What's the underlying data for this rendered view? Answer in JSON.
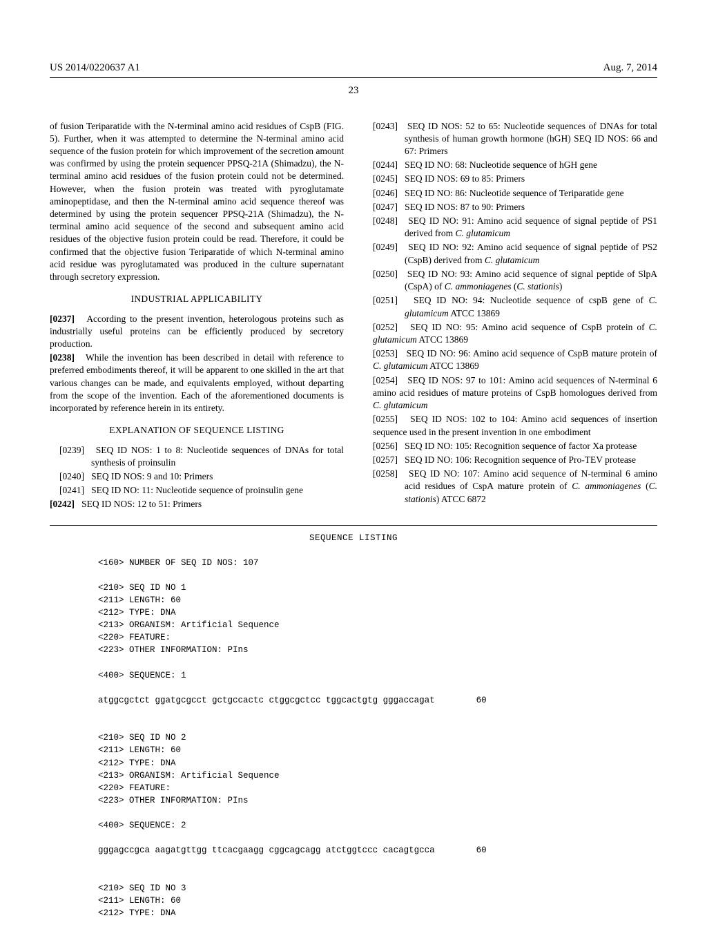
{
  "meta": {
    "pub_no": "US 2014/0220637 A1",
    "pub_date": "Aug. 7, 2014",
    "page_num": "23"
  },
  "col_left": {
    "intro": "of fusion Teriparatide with the N-terminal amino acid residues of CspB (FIG. 5). Further, when it was attempted to determine the N-terminal amino acid sequence of the fusion protein for which improvement of the secretion amount was confirmed by using the protein sequencer PPSQ-21A (Shimadzu), the N-terminal amino acid residues of the fusion protein could not be determined. However, when the fusion protein was treated with pyroglutamate aminopeptidase, and then the N-terminal amino acid sequence thereof was determined by using the protein sequencer PPSQ-21A (Shimadzu), the N-terminal amino acid sequence of the second and subsequent amino acid residues of the objective fusion protein could be read. Therefore, it could be confirmed that the objective fusion Teriparatide of which N-terminal amino acid residue was pyroglutamated was produced in the culture supernatant through secretory expression.",
    "heading_ind": "INDUSTRIAL APPLICABILITY",
    "p0237_num": "[0237]",
    "p0237": "According to the present invention, heterologous proteins such as industrially useful proteins can be efficiently produced by secretory production.",
    "p0238_num": "[0238]",
    "p0238": "While the invention has been described in detail with reference to preferred embodiments thereof, it will be apparent to one skilled in the art that various changes can be made, and equivalents employed, without departing from the scope of the invention. Each of the aforementioned documents is incorporated by reference herein in its entirety.",
    "heading_expl": "EXPLANATION OF SEQUENCE LISTING",
    "p0239_num": "[0239]",
    "p0239": "SEQ ID NOS: 1 to 8: Nucleotide sequences of DNAs for total synthesis of proinsulin",
    "p0240_num": "[0240]",
    "p0240": "SEQ ID NOS: 9 and 10: Primers",
    "p0241_num": "[0241]",
    "p0241": "SEQ ID NO: 11: Nucleotide sequence of proinsulin gene",
    "p0242_num": "[0242]",
    "p0242": "SEQ ID NOS: 12 to 51: Primers"
  },
  "col_right": {
    "p0243_num": "[0243]",
    "p0243": "SEQ ID NOS: 52 to 65: Nucleotide sequences of DNAs for total synthesis of human growth hormone (hGH) SEQ ID NOS: 66 and 67: Primers",
    "p0244_num": "[0244]",
    "p0244": "SEQ ID NO: 68: Nucleotide sequence of hGH gene",
    "p0245_num": "[0245]",
    "p0245": "SEQ ID NOS: 69 to 85: Primers",
    "p0246_num": "[0246]",
    "p0246": "SEQ ID NO: 86: Nucleotide sequence of Teriparatide gene",
    "p0247_num": "[0247]",
    "p0247": "SEQ ID NOS: 87 to 90: Primers",
    "p0248_num": "[0248]",
    "p0248_a": "SEQ ID NO: 91: Amino acid sequence of signal peptide of PS1 derived from ",
    "p0248_i": "C. glutamicum",
    "p0249_num": "[0249]",
    "p0249_a": "SEQ ID NO: 92: Amino acid sequence of signal peptide of PS2 (CspB) derived from ",
    "p0249_i": "C. glutamicum",
    "p0250_num": "[0250]",
    "p0250_a": "SEQ ID NO: 93: Amino acid sequence of signal peptide of SlpA (CspA) of ",
    "p0250_i1": "C. ammoniagenes",
    "p0250_b": " (",
    "p0250_i2": "C. stationis",
    "p0250_c": ")",
    "p0251_num": "[0251]",
    "p0251_a": "SEQ ID NO: 94: Nucleotide sequence of cspB gene of ",
    "p0251_i": "C. glutamicum",
    "p0251_b": " ATCC 13869",
    "p0252_num": "[0252]",
    "p0252_a": "SEQ ID NO: 95: Amino acid sequence of CspB protein of ",
    "p0252_i": "C. glutamicum",
    "p0252_b": " ATCC 13869",
    "p0253_num": "[0253]",
    "p0253_a": "SEQ ID NO: 96: Amino acid sequence of CspB mature protein of ",
    "p0253_i": "C. glutamicum",
    "p0253_b": " ATCC 13869",
    "p0254_num": "[0254]",
    "p0254_a": "SEQ ID NOS: 97 to 101: Amino acid sequences of N-terminal 6 amino acid residues of mature proteins of CspB homologues derived from ",
    "p0254_i": "C. glutamicum",
    "p0255_num": "[0255]",
    "p0255": "SEQ ID NOS: 102 to 104: Amino acid sequences of insertion sequence used in the present invention in one embodiment",
    "p0256_num": "[0256]",
    "p0256": "SEQ ID NO: 105: Recognition sequence of factor Xa protease",
    "p0257_num": "[0257]",
    "p0257": "SEQ ID NO: 106: Recognition sequence of Pro-TEV protease",
    "p0258_num": "[0258]",
    "p0258_a": "SEQ ID NO: 107: Amino acid sequence of N-terminal 6 amino acid residues of CspA mature protein of ",
    "p0258_i1": "C. ammoniagenes",
    "p0258_b": " (",
    "p0258_i2": "C. stationis",
    "p0258_c": ") ATCC 6872"
  },
  "sequence_listing": {
    "title": "SEQUENCE LISTING",
    "header": "<160> NUMBER OF SEQ ID NOS: 107",
    "seq1_meta": "<210> SEQ ID NO 1\n<211> LENGTH: 60\n<212> TYPE: DNA\n<213> ORGANISM: Artificial Sequence\n<220> FEATURE:\n<223> OTHER INFORMATION: PIns\n\n<400> SEQUENCE: 1",
    "seq1_body": "atggcgctct ggatgcgcct gctgccactc ctggcgctcc tggcactgtg gggaccagat        60",
    "seq2_meta": "<210> SEQ ID NO 2\n<211> LENGTH: 60\n<212> TYPE: DNA\n<213> ORGANISM: Artificial Sequence\n<220> FEATURE:\n<223> OTHER INFORMATION: PIns\n\n<400> SEQUENCE: 2",
    "seq2_body": "gggagccgca aagatgttgg ttcacgaagg cggcagcagg atctggtccc cacagtgcca        60",
    "seq3_meta": "<210> SEQ ID NO 3\n<211> LENGTH: 60\n<212> TYPE: DNA"
  }
}
